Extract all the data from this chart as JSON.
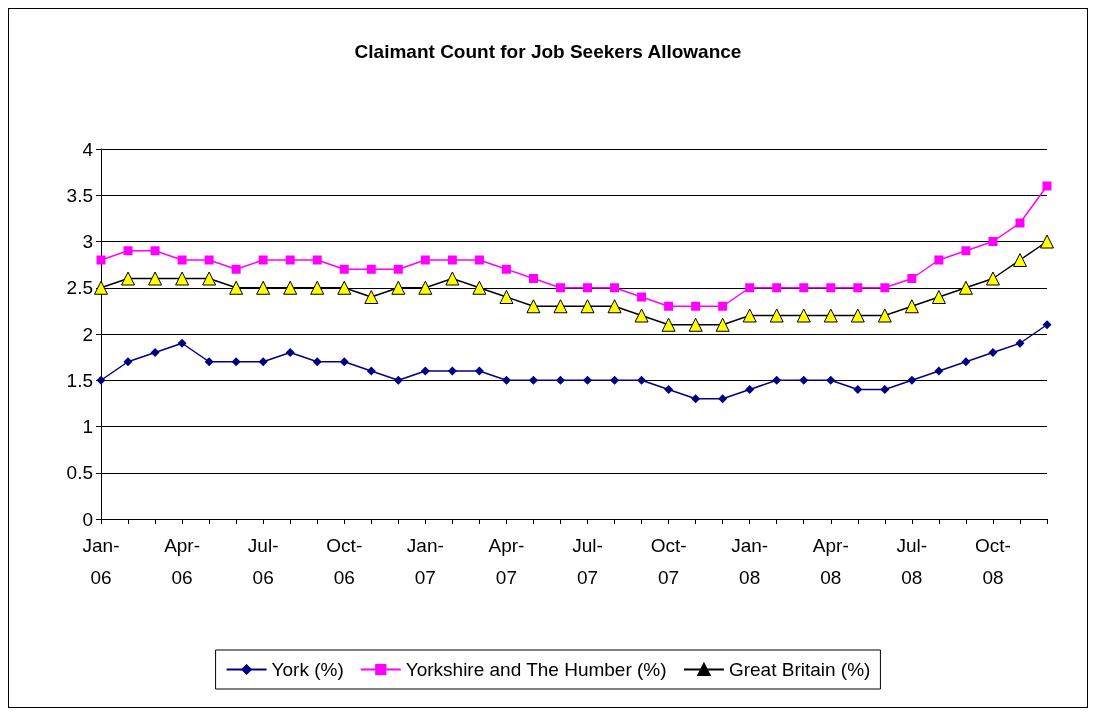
{
  "chart_data": {
    "type": "line",
    "title": "Claimant Count for Job Seekers Allowance",
    "categories": [
      "Jan-06",
      null,
      null,
      "Apr-06",
      null,
      null,
      "Jul-06",
      null,
      null,
      "Oct-06",
      null,
      null,
      "Jan-07",
      null,
      null,
      "Apr-07",
      null,
      null,
      "Jul-07",
      null,
      null,
      "Oct-07",
      null,
      null,
      "Jan-08",
      null,
      null,
      "Apr-08",
      null,
      null,
      "Jul-08",
      null,
      null,
      "Oct-08",
      null,
      null
    ],
    "series": [
      {
        "name": "York (%)",
        "color": "#000080",
        "marker": "diamond",
        "values": [
          1.5,
          1.7,
          1.8,
          1.9,
          1.7,
          1.7,
          1.7,
          1.8,
          1.7,
          1.7,
          1.6,
          1.5,
          1.6,
          1.6,
          1.6,
          1.5,
          1.5,
          1.5,
          1.5,
          1.5,
          1.5,
          1.4,
          1.3,
          1.3,
          1.4,
          1.5,
          1.5,
          1.5,
          1.4,
          1.4,
          1.5,
          1.6,
          1.7,
          1.8,
          1.9,
          2.1
        ]
      },
      {
        "name": "Yorkshire and The Humber (%)",
        "color": "#ff00ff",
        "marker": "square",
        "values": [
          2.8,
          2.9,
          2.9,
          2.8,
          2.8,
          2.7,
          2.8,
          2.8,
          2.8,
          2.7,
          2.7,
          2.7,
          2.8,
          2.8,
          2.8,
          2.7,
          2.6,
          2.5,
          2.5,
          2.5,
          2.4,
          2.3,
          2.3,
          2.3,
          2.5,
          2.5,
          2.5,
          2.5,
          2.5,
          2.5,
          2.6,
          2.8,
          2.9,
          3.0,
          3.2,
          3.6
        ]
      },
      {
        "name": "Great Britain (%)",
        "color": "#000000",
        "marker": "triangle",
        "colors": [
          "#ffff00",
          "#ffff00",
          "#ffff00",
          "#ffff00",
          "#ffff00",
          "#ffff00",
          "#ffff00",
          "#ffff00",
          "#ffff00",
          "#ffff00",
          "#ffff00",
          "#ffff00",
          "#ffff00",
          "#ffff00",
          "#ffff00",
          "#ffff00",
          "#ffff00",
          "#ffff00",
          "#ffff00",
          "#ffff00",
          "#ffff00",
          "#ffff00",
          "#ffff00",
          "#ffff00",
          "#ffff00",
          "#ffff00",
          "#ffff00",
          "#ffff00",
          "#ffff00",
          "#ffff00",
          "#ffff00",
          "#ffff00",
          "#ffff00",
          "#ffff00",
          "#ffff00",
          "#ffff00"
        ],
        "values": [
          2.5,
          2.6,
          2.6,
          2.6,
          2.6,
          2.5,
          2.5,
          2.5,
          2.5,
          2.5,
          2.4,
          2.5,
          2.5,
          2.6,
          2.5,
          2.4,
          2.3,
          2.3,
          2.3,
          2.3,
          2.2,
          2.1,
          2.1,
          2.1,
          2.2,
          2.2,
          2.2,
          2.2,
          2.2,
          2.2,
          2.3,
          2.4,
          2.5,
          2.6,
          2.8,
          3.0
        ]
      }
    ],
    "ylim": [
      0,
      4
    ],
    "yticks": [
      0,
      0.5,
      1,
      1.5,
      2,
      2.5,
      3,
      3.5,
      4
    ],
    "grid": "y",
    "legend": "bottom",
    "line_style": "solid"
  }
}
